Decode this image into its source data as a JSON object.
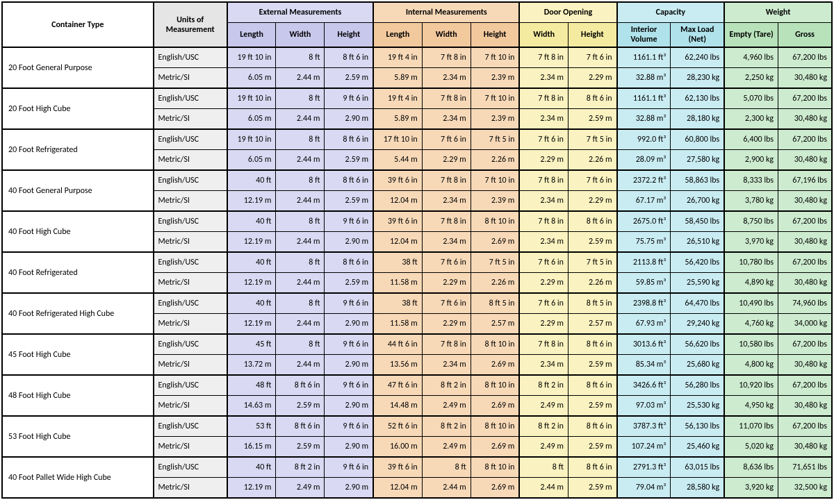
{
  "headers": {
    "container_type": "Container Type",
    "units": "Units of Measurement",
    "external": "External Measurements",
    "internal": "Internal Measurements",
    "door": "Door Opening",
    "capacity": "Capacity",
    "weight": "Weight",
    "length": "Length",
    "width": "Width",
    "height": "Height",
    "int_volume": "Interior Volume",
    "max_load": "Max Load (Net)",
    "empty": "Empty (Tare)",
    "gross": "Gross"
  },
  "unit_labels": {
    "en": "English/USC",
    "si": "Metric/SI"
  },
  "colors": {
    "ext": "#d9d9f3",
    "int": "#f7d9b8",
    "door": "#faf2c0",
    "cap": "#c9ecf2",
    "wt": "#cdebcf",
    "units": "#efefef"
  },
  "rows": [
    {
      "name": "20 Foot General Purpose",
      "en": [
        "19 ft 10 in",
        "8 ft",
        "8 ft 6 in",
        "19 ft 4 in",
        "7 ft 8 in",
        "7 ft 10 in",
        "7 ft 8 in",
        "7 ft 6 in",
        "1161.1 ft³",
        "62,240 lbs",
        "4,960 lbs",
        "67,200 lbs"
      ],
      "si": [
        "6.05 m",
        "2.44 m",
        "2.59 m",
        "5.89 m",
        "2.34 m",
        "2.39 m",
        "2.34 m",
        "2.29 m",
        "32.88 m³",
        "28,230 kg",
        "2,250 kg",
        "30,480 kg"
      ]
    },
    {
      "name": "20 Foot High Cube",
      "en": [
        "19 ft 10 in",
        "8 ft",
        "9 ft 6 in",
        "19 ft 4 in",
        "7 ft 8 in",
        "7 ft 10 in",
        "7 ft 8 in",
        "8 ft 6 in",
        "1161.1 ft³",
        "62,130 lbs",
        "5,070 lbs",
        "67,200 lbs"
      ],
      "si": [
        "6.05 m",
        "2.44 m",
        "2.90 m",
        "5.89 m",
        "2.34 m",
        "2.39 m",
        "2.34 m",
        "2.59 m",
        "32.88 m³",
        "28,180 kg",
        "2,300 kg",
        "30,480 kg"
      ]
    },
    {
      "name": "20 Foot Refrigerated",
      "en": [
        "19 ft 10 in",
        "8 ft",
        "8 ft 6 in",
        "17 ft 10 in",
        "7 ft 6 in",
        "7 ft 5 in",
        "7 ft 6 in",
        "7 ft 5 in",
        "992.0 ft³",
        "60,800 lbs",
        "6,400 lbs",
        "67,200 lbs"
      ],
      "si": [
        "6.05 m",
        "2.44 m",
        "2.59 m",
        "5.44 m",
        "2.29 m",
        "2.26 m",
        "2.29 m",
        "2.26 m",
        "28.09 m³",
        "27,580 kg",
        "2,900 kg",
        "30,480 kg"
      ]
    },
    {
      "name": "40 Foot General Purpose",
      "en": [
        "40 ft",
        "8 ft",
        "8 ft 6 in",
        "39 ft 6 in",
        "7 ft 8 in",
        "7 ft 10 in",
        "7 ft 8 in",
        "7 ft 6 in",
        "2372.2 ft³",
        "58,863 lbs",
        "8,333 lbs",
        "67,196 lbs"
      ],
      "si": [
        "12.19 m",
        "2.44 m",
        "2.59 m",
        "12.04 m",
        "2.34 m",
        "2.39 m",
        "2.34 m",
        "2.29 m",
        "67.17 m³",
        "26,700 kg",
        "3,780 kg",
        "30,480 kg"
      ]
    },
    {
      "name": "40 Foot High Cube",
      "en": [
        "40 ft",
        "8 ft",
        "9 ft 6 in",
        "39 ft 6 in",
        "7 ft 8 in",
        "8 ft 10 in",
        "7 ft 8 in",
        "8 ft 6 in",
        "2675.0 ft³",
        "58,450 lbs",
        "8,750 lbs",
        "67,200 lbs"
      ],
      "si": [
        "12.19 m",
        "2.44 m",
        "2.90 m",
        "12.04 m",
        "2.34 m",
        "2.69 m",
        "2.34 m",
        "2.59 m",
        "75.75 m³",
        "26,510 kg",
        "3,970 kg",
        "30,480 kg"
      ]
    },
    {
      "name": "40 Foot Refrigerated",
      "en": [
        "40 ft",
        "8 ft",
        "8 ft 6 in",
        "38 ft",
        "7 ft 6 in",
        "7 ft 5 in",
        "7 ft 6 in",
        "7 ft 5 in",
        "2113.8 ft³",
        "56,420 lbs",
        "10,780 lbs",
        "67,200 lbs"
      ],
      "si": [
        "12.19 m",
        "2.44 m",
        "2.59 m",
        "11.58 m",
        "2.29 m",
        "2.26 m",
        "2.29 m",
        "2.26 m",
        "59.85 m³",
        "25,590 kg",
        "4,890 kg",
        "30,480 kg"
      ]
    },
    {
      "name": "40 Foot Refrigerated High Cube",
      "en": [
        "40 ft",
        "8 ft",
        "9 ft 6 in",
        "38 ft",
        "7 ft 6 in",
        "8 ft 5 in",
        "7 ft 6 in",
        "8 ft 5 in",
        "2398.8 ft³",
        "64,470 lbs",
        "10,490 lbs",
        "74,960 lbs"
      ],
      "si": [
        "12.19 m",
        "2.44 m",
        "2.90 m",
        "11.58 m",
        "2.29 m",
        "2.57 m",
        "2.29 m",
        "2.57 m",
        "67.93 m³",
        "29,240 kg",
        "4,760 kg",
        "34,000 kg"
      ]
    },
    {
      "name": "45 Foot High Cube",
      "en": [
        "45 ft",
        "8 ft",
        "9 ft 6 in",
        "44 ft 6 in",
        "7 ft 8 in",
        "8 ft 10 in",
        "7 ft 8 in",
        "8 ft 6 in",
        "3013.6 ft³",
        "56,620 lbs",
        "10,580 lbs",
        "67,200 lbs"
      ],
      "si": [
        "13.72 m",
        "2.44 m",
        "2.90 m",
        "13.56 m",
        "2.34 m",
        "2.69 m",
        "2.34 m",
        "2.59 m",
        "85.34 m³",
        "25,680 kg",
        "4,800 kg",
        "30,480 kg"
      ]
    },
    {
      "name": "48 Foot High Cube",
      "en": [
        "48 ft",
        "8 ft 6 in",
        "9 ft 6 in",
        "47 ft 6 in",
        "8 ft 2 in",
        "8 ft 10 in",
        "8 ft 2 in",
        "8 ft 6 in",
        "3426.6 ft³",
        "56,280 lbs",
        "10,920 lbs",
        "67,200 lbs"
      ],
      "si": [
        "14.63 m",
        "2.59 m",
        "2.90 m",
        "14.48 m",
        "2.49 m",
        "2.69 m",
        "2.49 m",
        "2.59 m",
        "97.03 m³",
        "25,530 kg",
        "4,950 kg",
        "30,480 kg"
      ]
    },
    {
      "name": "53 Foot High Cube",
      "en": [
        "53 ft",
        "8 ft 6 in",
        "9 ft 6 in",
        "52 ft 6 in",
        "8 ft 2 in",
        "8 ft 10 in",
        "8 ft 2 in",
        "8 ft 6 in",
        "3787.3 ft³",
        "56,130 lbs",
        "11,070 lbs",
        "67,200 lbs"
      ],
      "si": [
        "16.15 m",
        "2.59 m",
        "2.90 m",
        "16.00 m",
        "2.49 m",
        "2.69 m",
        "2.49 m",
        "2.59 m",
        "107.24 m³",
        "25,460 kg",
        "5,020 kg",
        "30,480 kg"
      ]
    },
    {
      "name": "40 Foot Pallet Wide High Cube",
      "en": [
        "40 ft",
        "8 ft 2 in",
        "9 ft 6 in",
        "39 ft 6 in",
        "8 ft",
        "8 ft 10 in",
        "8 ft",
        "8 ft 6 in",
        "2791.3 ft³",
        "63,015 lbs",
        "8,636 lbs",
        "71,651 lbs"
      ],
      "si": [
        "12.19 m",
        "2.49 m",
        "2.90 m",
        "12.04 m",
        "2.44 m",
        "2.69 m",
        "2.44 m",
        "2.59 m",
        "79.04 m³",
        "28,580 kg",
        "3,920 kg",
        "32,500 kg"
      ]
    }
  ]
}
